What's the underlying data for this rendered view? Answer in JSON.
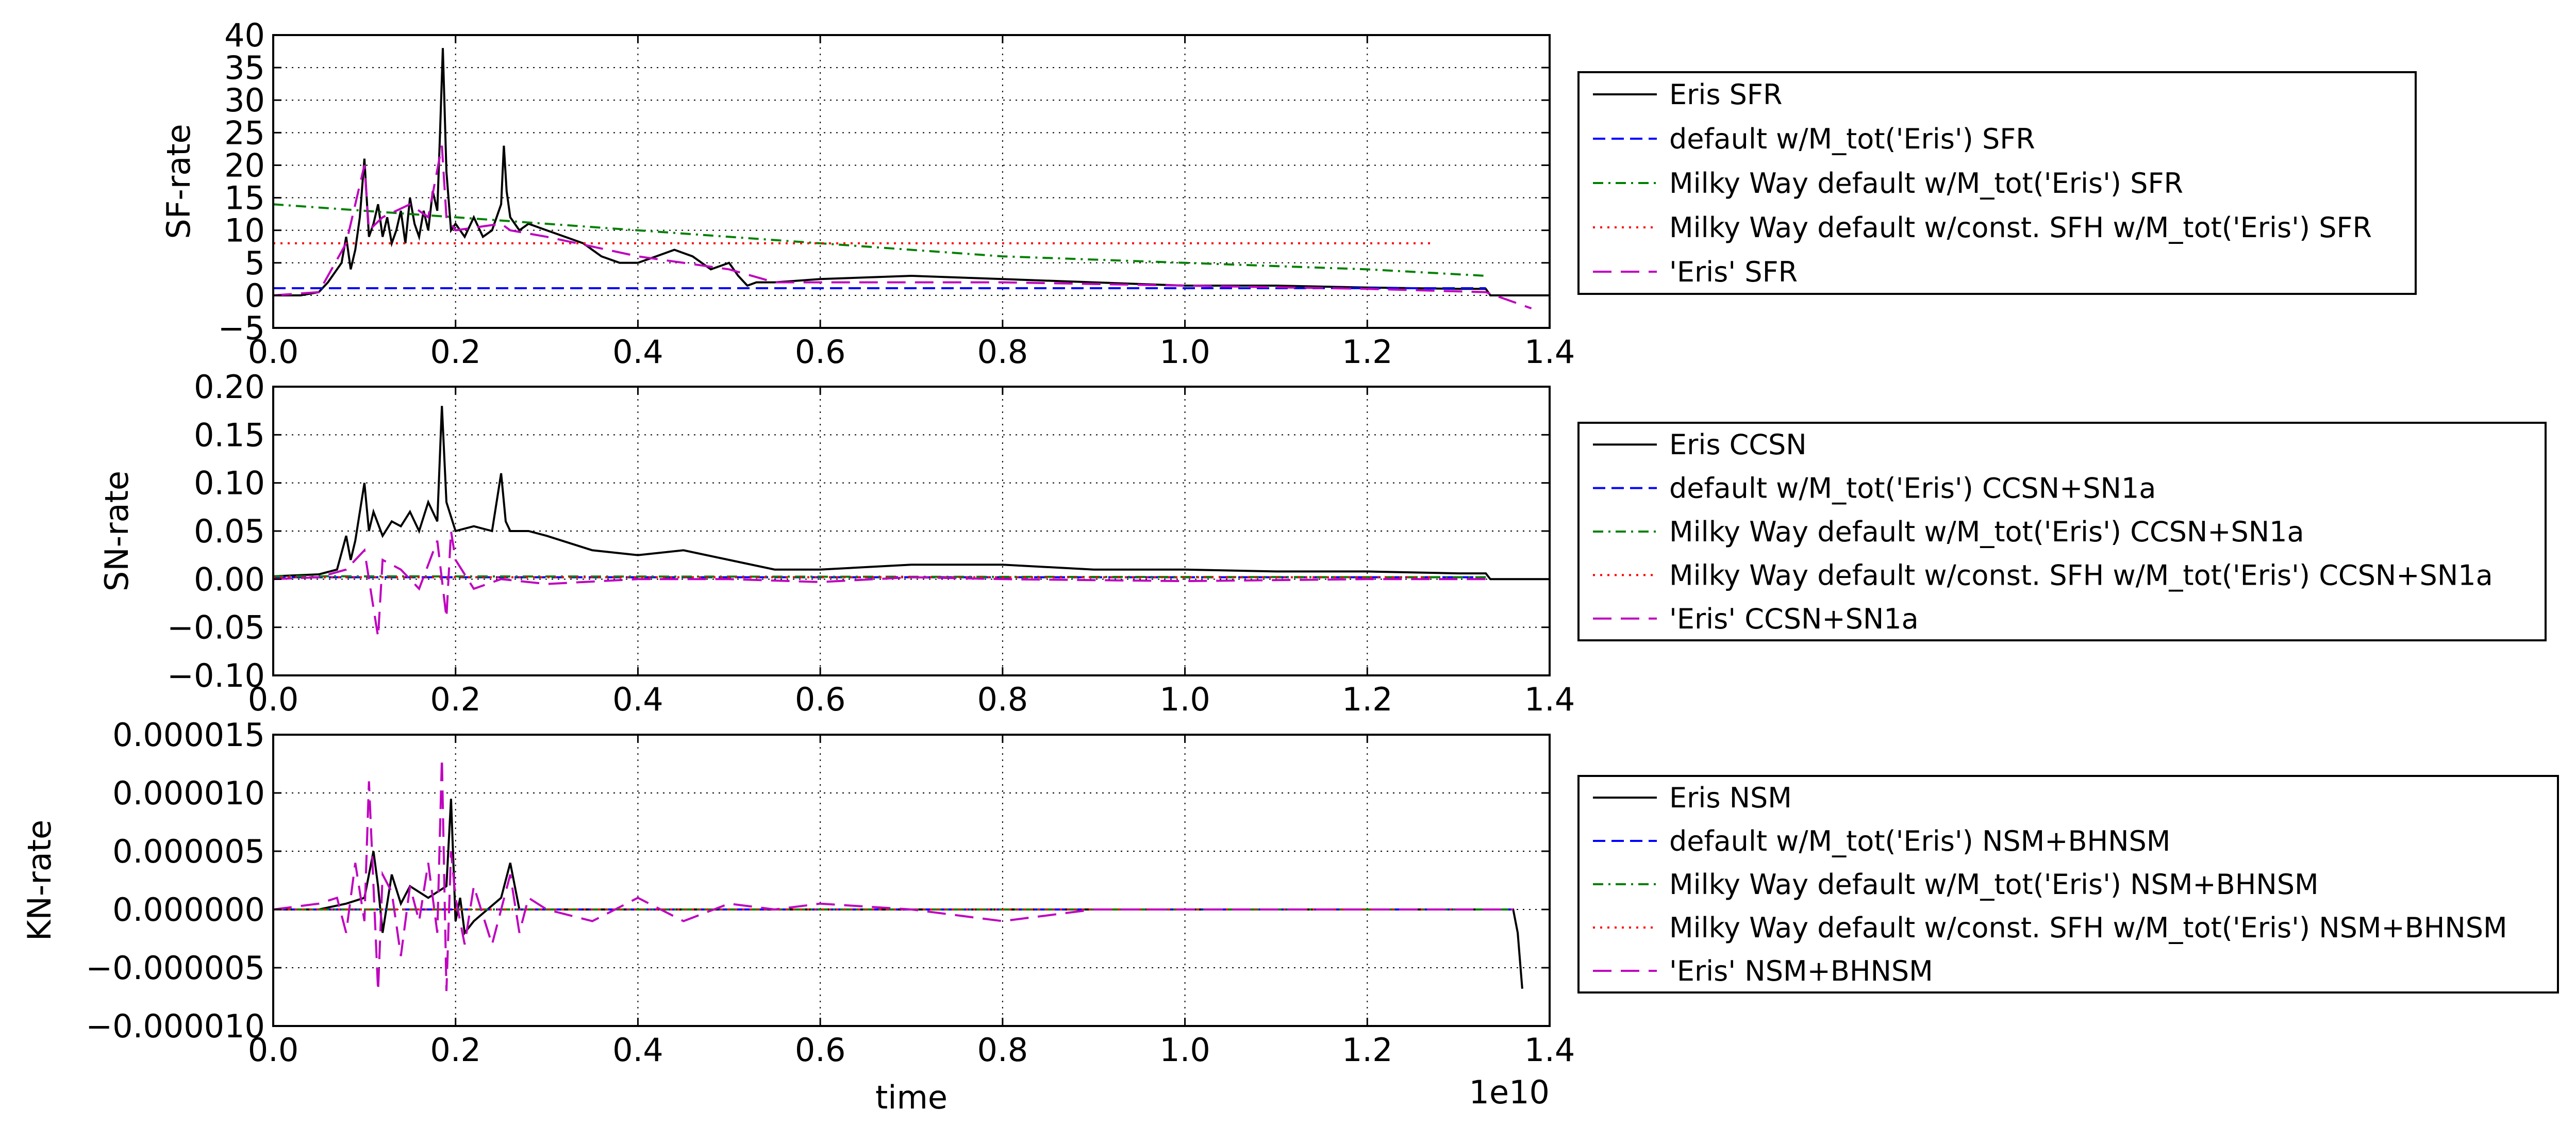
{
  "chart_data": [
    {
      "type": "line",
      "ylabel": "SF-rate",
      "xlabel": "",
      "xlim": [
        0.0,
        1.4
      ],
      "ylim": [
        -5,
        40
      ],
      "xticks": [
        "0.0",
        "0.2",
        "0.4",
        "0.6",
        "0.8",
        "1.0",
        "1.2",
        "1.4"
      ],
      "yticks": [
        "−5",
        "0",
        "5",
        "10",
        "15",
        "20",
        "25",
        "30",
        "35",
        "40"
      ],
      "grid": true,
      "legend_position": "right",
      "series": [
        {
          "name": "Eris SFR",
          "color": "#000000",
          "style": "solid",
          "x": [
            0.0,
            0.03,
            0.05,
            0.06,
            0.07,
            0.075,
            0.08,
            0.085,
            0.09,
            0.095,
            0.1,
            0.105,
            0.11,
            0.115,
            0.12,
            0.125,
            0.13,
            0.135,
            0.14,
            0.145,
            0.15,
            0.155,
            0.16,
            0.165,
            0.17,
            0.175,
            0.18,
            0.183,
            0.186,
            0.19,
            0.195,
            0.2,
            0.21,
            0.22,
            0.23,
            0.24,
            0.25,
            0.253,
            0.256,
            0.26,
            0.27,
            0.28,
            0.3,
            0.32,
            0.34,
            0.36,
            0.38,
            0.4,
            0.42,
            0.44,
            0.46,
            0.48,
            0.5,
            0.51,
            0.52,
            0.53,
            0.55,
            0.6,
            0.7,
            0.8,
            0.9,
            1.0,
            1.1,
            1.2,
            1.3,
            1.33,
            1.335,
            1.4
          ],
          "y": [
            0,
            0,
            0.5,
            2,
            4,
            5,
            9,
            4,
            7,
            12,
            21,
            9,
            11,
            14,
            9,
            12,
            8,
            10,
            13,
            8,
            15,
            11,
            9,
            13,
            10,
            16,
            13,
            25,
            38,
            19,
            10,
            11,
            9,
            12,
            9,
            10,
            14,
            23,
            16,
            12,
            10,
            11,
            10,
            9,
            8,
            6,
            5,
            5,
            6,
            7,
            6,
            4,
            5,
            3,
            1.5,
            2,
            2,
            2.5,
            3,
            2.5,
            2,
            1.5,
            1.5,
            1.2,
            1,
            1,
            0,
            0
          ]
        },
        {
          "name": "default w/M_tot('Eris') SFR",
          "color": "#0000ff",
          "style": "dashed",
          "x": [
            0.0,
            1.33
          ],
          "y": [
            1.1,
            1.1
          ]
        },
        {
          "name": "Milky Way default w/M_tot('Eris') SFR",
          "color": "#008000",
          "style": "dashdot",
          "x": [
            0.0,
            0.2,
            0.4,
            0.6,
            0.8,
            1.0,
            1.2,
            1.33
          ],
          "y": [
            14,
            12,
            10,
            8,
            6,
            5,
            4,
            3
          ]
        },
        {
          "name": "Milky Way default w/const. SFH  w/M_tot('Eris') SFR",
          "color": "#ff0000",
          "style": "dotted",
          "x": [
            0.0,
            1.27
          ],
          "y": [
            8,
            8
          ]
        },
        {
          "name": "'Eris' SFR",
          "color": "#bf00bf",
          "style": "longdash",
          "x": [
            0.0,
            0.05,
            0.08,
            0.1,
            0.105,
            0.12,
            0.15,
            0.17,
            0.185,
            0.19,
            0.2,
            0.25,
            0.26,
            0.3,
            0.4,
            0.5,
            0.55,
            0.6,
            0.8,
            1.0,
            1.2,
            1.33,
            1.38
          ],
          "y": [
            0,
            0.5,
            8,
            20,
            10,
            12,
            14,
            12,
            23,
            12,
            10,
            11,
            10,
            9,
            6,
            4,
            2,
            2,
            2,
            1.5,
            1,
            0.5,
            -2
          ]
        }
      ]
    },
    {
      "type": "line",
      "ylabel": "SN-rate",
      "xlabel": "",
      "xlim": [
        0.0,
        1.4
      ],
      "ylim": [
        -0.1,
        0.2
      ],
      "xticks": [
        "0.0",
        "0.2",
        "0.4",
        "0.6",
        "0.8",
        "1.0",
        "1.2",
        "1.4"
      ],
      "yticks": [
        "−0.10",
        "−0.05",
        "0.00",
        "0.05",
        "0.10",
        "0.15",
        "0.20"
      ],
      "grid": true,
      "legend_position": "right",
      "series": [
        {
          "name": "Eris CCSN",
          "color": "#000000",
          "style": "solid",
          "x": [
            0.0,
            0.05,
            0.07,
            0.08,
            0.085,
            0.09,
            0.1,
            0.105,
            0.11,
            0.12,
            0.13,
            0.14,
            0.15,
            0.16,
            0.17,
            0.18,
            0.185,
            0.19,
            0.2,
            0.22,
            0.24,
            0.25,
            0.255,
            0.26,
            0.28,
            0.3,
            0.35,
            0.4,
            0.45,
            0.5,
            0.55,
            0.6,
            0.7,
            0.8,
            0.9,
            1.0,
            1.1,
            1.2,
            1.3,
            1.33,
            1.335,
            1.4
          ],
          "y": [
            0.003,
            0.005,
            0.01,
            0.045,
            0.02,
            0.04,
            0.1,
            0.05,
            0.07,
            0.045,
            0.06,
            0.055,
            0.07,
            0.05,
            0.08,
            0.06,
            0.18,
            0.08,
            0.05,
            0.055,
            0.05,
            0.11,
            0.06,
            0.05,
            0.05,
            0.045,
            0.03,
            0.025,
            0.03,
            0.02,
            0.01,
            0.01,
            0.015,
            0.015,
            0.01,
            0.01,
            0.008,
            0.008,
            0.006,
            0.006,
            0.0,
            0.0
          ]
        },
        {
          "name": "default w/M_tot('Eris') CCSN+SN1a",
          "color": "#0000ff",
          "style": "dashed",
          "x": [
            0.0,
            1.33
          ],
          "y": [
            0.002,
            0.002
          ]
        },
        {
          "name": "Milky Way default w/M_tot('Eris') CCSN+SN1a",
          "color": "#008000",
          "style": "dashdot",
          "x": [
            0.0,
            1.33
          ],
          "y": [
            0.003,
            0.002
          ]
        },
        {
          "name": "Milky Way default w/const. SFH  w/M_tot('Eris') CCSN+SN1a",
          "color": "#ff0000",
          "style": "dotted",
          "x": [
            0.0,
            1.27
          ],
          "y": [
            0.002,
            0.002
          ]
        },
        {
          "name": "'Eris' CCSN+SN1a",
          "color": "#bf00bf",
          "style": "longdash",
          "x": [
            0.0,
            0.05,
            0.08,
            0.1,
            0.11,
            0.115,
            0.12,
            0.14,
            0.16,
            0.18,
            0.19,
            0.195,
            0.2,
            0.22,
            0.25,
            0.3,
            0.4,
            0.5,
            0.6,
            0.7,
            0.8,
            1.0,
            1.2,
            1.33
          ],
          "y": [
            0,
            0.002,
            0.01,
            0.03,
            -0.03,
            -0.06,
            0.02,
            0.01,
            -0.01,
            0.04,
            -0.04,
            0.05,
            0.02,
            -0.01,
            0.0,
            -0.005,
            0.0,
            0.0,
            -0.003,
            0.002,
            0.0,
            -0.002,
            0.0,
            0.0
          ]
        }
      ]
    },
    {
      "type": "line",
      "ylabel": "KN-rate",
      "xlabel": "time",
      "x_multiplier": "1e10",
      "xlim": [
        0.0,
        1.4
      ],
      "ylim": [
        -1e-05,
        1.5e-05
      ],
      "xticks": [
        "0.0",
        "0.2",
        "0.4",
        "0.6",
        "0.8",
        "1.0",
        "1.2",
        "1.4"
      ],
      "yticks": [
        "−0.000010",
        "−0.000005",
        "0.000000",
        "0.000005",
        "0.000010",
        "0.000015"
      ],
      "grid": true,
      "legend_position": "right",
      "series": [
        {
          "name": "Eris NSM",
          "color": "#000000",
          "style": "solid",
          "x": [
            0.0,
            0.05,
            0.08,
            0.1,
            0.11,
            0.115,
            0.12,
            0.13,
            0.14,
            0.15,
            0.17,
            0.19,
            0.195,
            0.2,
            0.205,
            0.21,
            0.22,
            0.25,
            0.26,
            0.27,
            0.3,
            0.35,
            0.4,
            0.5,
            0.6,
            0.8,
            1.0,
            1.2,
            1.36,
            1.365,
            1.37
          ],
          "y": [
            0,
            0,
            5e-07,
            1e-06,
            5e-06,
            2e-06,
            -2e-06,
            3e-06,
            5e-07,
            2e-06,
            1e-06,
            2e-06,
            9.5e-06,
            -1e-06,
            1e-06,
            -2e-06,
            -1e-06,
            1e-06,
            4e-06,
            0.0,
            0.0,
            0.0,
            0.0,
            0.0,
            0.0,
            0.0,
            0.0,
            0.0,
            0.0,
            -2e-06,
            -6.8e-06
          ]
        },
        {
          "name": "default w/M_tot('Eris') NSM+BHNSM",
          "color": "#0000ff",
          "style": "dashed",
          "x": [
            0.0,
            1.36
          ],
          "y": [
            0,
            0
          ]
        },
        {
          "name": "Milky Way default w/M_tot('Eris') NSM+BHNSM",
          "color": "#008000",
          "style": "dashdot",
          "x": [
            0.0,
            1.36
          ],
          "y": [
            0,
            0
          ]
        },
        {
          "name": "Milky Way default w/const. SFH  w/M_tot('Eris') NSM+BHNSM",
          "color": "#ff0000",
          "style": "dotted",
          "x": [
            0.0,
            1.3
          ],
          "y": [
            0,
            0
          ]
        },
        {
          "name": "'Eris' NSM+BHNSM",
          "color": "#bf00bf",
          "style": "longdash",
          "x": [
            0.0,
            0.05,
            0.07,
            0.08,
            0.09,
            0.1,
            0.105,
            0.11,
            0.115,
            0.12,
            0.13,
            0.14,
            0.15,
            0.16,
            0.17,
            0.18,
            0.185,
            0.19,
            0.195,
            0.2,
            0.21,
            0.22,
            0.24,
            0.26,
            0.27,
            0.28,
            0.3,
            0.35,
            0.4,
            0.45,
            0.5,
            0.55,
            0.6,
            0.7,
            0.8,
            0.9,
            1.0,
            1.2,
            1.3,
            1.36
          ],
          "y": [
            0,
            5e-07,
            1e-06,
            -2e-06,
            4e-06,
            -1e-06,
            1.1e-05,
            2e-06,
            -7e-06,
            3e-06,
            1.5e-06,
            -4e-06,
            2e-06,
            -1e-06,
            4e-06,
            -2e-06,
            1.3e-05,
            -7e-06,
            5e-06,
            1e-06,
            -3e-06,
            2e-06,
            -3e-06,
            3e-06,
            -2e-06,
            1e-06,
            0.0,
            -1e-06,
            1e-06,
            -1e-06,
            5e-07,
            0.0,
            5e-07,
            0.0,
            -1e-06,
            0.0,
            0.0,
            0.0,
            0.0,
            0.0
          ]
        }
      ]
    }
  ]
}
